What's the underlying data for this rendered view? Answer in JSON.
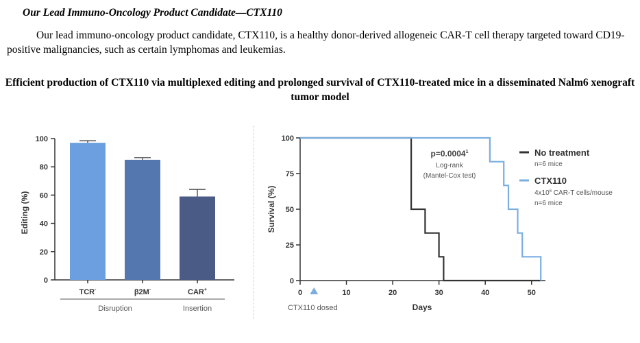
{
  "heading": "Our Lead Immuno-Oncology Product Candidate—CTX110",
  "paragraph": "Our lead immuno-oncology product candidate, CTX110, is a healthy donor-derived allogeneic CAR-T cell therapy targeted toward CD19-positive malignancies, such as certain lymphomas and leukemias.",
  "figure_title": "Efficient production of CTX110 via multiplexed editing and prolonged survival of CTX110-treated mice in a disseminated Nalm6 xenograft tumor model",
  "chart_data": [
    {
      "type": "bar",
      "ylabel": "Editing (%)",
      "xlabel": "",
      "ylim": [
        0,
        100
      ],
      "yticks": [
        0,
        20,
        40,
        60,
        80,
        100
      ],
      "categories": [
        "TCR",
        "β2M",
        "CAR"
      ],
      "category_sup": [
        "-",
        "-",
        "+"
      ],
      "values": [
        97,
        85,
        59
      ],
      "error": [
        1.5,
        1.5,
        5
      ],
      "colors": [
        "#6b9fe0",
        "#5477b0",
        "#4a5c86"
      ],
      "groups": [
        {
          "label": "Disruption",
          "span": [
            0,
            1
          ]
        },
        {
          "label": "Insertion",
          "span": [
            2,
            2
          ]
        }
      ]
    },
    {
      "type": "line",
      "xlabel": "Days",
      "ylabel": "Survival (%)",
      "xlim": [
        0,
        53
      ],
      "ylim": [
        0,
        100
      ],
      "xticks": [
        0,
        10,
        20,
        30,
        40,
        50
      ],
      "yticks": [
        0,
        25,
        50,
        75,
        100
      ],
      "series": [
        {
          "name": "No treatment",
          "subtitle": "n=6 mice",
          "color": "#333333",
          "x": [
            0,
            24,
            24,
            27,
            27,
            30,
            30,
            31,
            31,
            52
          ],
          "y": [
            100,
            100,
            50,
            50,
            33.3,
            33.3,
            16.7,
            16.7,
            0,
            0
          ]
        },
        {
          "name": "CTX110",
          "subtitle1": "4x10",
          "subtitle1_sup": "6",
          "subtitle1_rest": " CAR-T cells/mouse",
          "subtitle2": "n=6 mice",
          "color": "#7aaee0",
          "x": [
            0,
            41,
            41,
            44,
            44,
            45,
            45,
            47,
            47,
            48,
            48,
            52,
            52
          ],
          "y": [
            100,
            100,
            83.3,
            83.3,
            66.7,
            66.7,
            50,
            50,
            33.3,
            33.3,
            16.7,
            16.7,
            0
          ]
        }
      ],
      "annotation": {
        "pvalue": "p=0.0004",
        "pvalue_sup": "1",
        "test_line1": "Log-rank",
        "test_line2": "(Mantel-Cox test)"
      },
      "dosed": {
        "day": 3,
        "label": "CTX110 dosed",
        "color": "#7aaee0"
      }
    }
  ]
}
